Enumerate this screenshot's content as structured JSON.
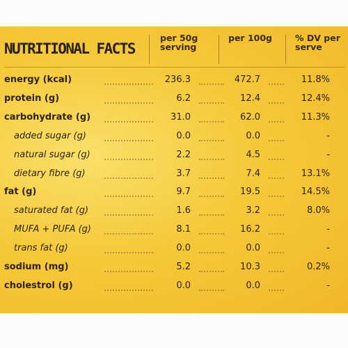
{
  "header": {
    "title": "NUTRITIONAL FACTS",
    "col_serving": "per 50g\nserving",
    "col_100g": "per 100g",
    "col_dv": "% DV per\nserve"
  },
  "rows": [
    {
      "label": "energy (kcal)",
      "serving": "236.3",
      "per100": "472.7",
      "dv": "11.8%",
      "sub": false
    },
    {
      "label": "protein (g)",
      "serving": "6.2",
      "per100": "12.4",
      "dv": "12.4%",
      "sub": false
    },
    {
      "label": "carbohydrate (g)",
      "serving": "31.0",
      "per100": "62.0",
      "dv": "11.3%",
      "sub": false
    },
    {
      "label": "added sugar (g)",
      "serving": "0.0",
      "per100": "0.0",
      "dv": "-",
      "sub": true
    },
    {
      "label": "natural sugar (g)",
      "serving": "2.2",
      "per100": "4.5",
      "dv": "-",
      "sub": true
    },
    {
      "label": "dietary fibre (g)",
      "serving": "3.7",
      "per100": "7.4",
      "dv": "13.1%",
      "sub": true
    },
    {
      "label": "fat (g)",
      "serving": "9.7",
      "per100": "19.5",
      "dv": "14.5%",
      "sub": false
    },
    {
      "label": "saturated fat (g)",
      "serving": "1.6",
      "per100": "3.2",
      "dv": "8.0%",
      "sub": true
    },
    {
      "label": "MUFA + PUFA (g)",
      "serving": "8.1",
      "per100": "16.2",
      "dv": "-",
      "sub": true
    },
    {
      "label": "trans fat (g)",
      "serving": "0.0",
      "per100": "0.0",
      "dv": "-",
      "sub": true
    },
    {
      "label": "sodium (mg)",
      "serving": "5.2",
      "per100": "10.3",
      "dv": "0.2%",
      "sub": false
    },
    {
      "label": "cholestrol (g)",
      "serving": "0.0",
      "per100": "0.0",
      "dv": "-",
      "sub": false
    }
  ]
}
